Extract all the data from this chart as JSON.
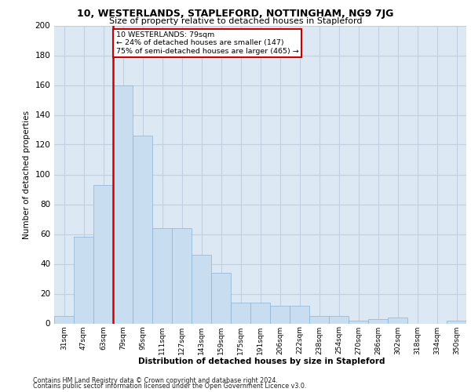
{
  "title": "10, WESTERLANDS, STAPLEFORD, NOTTINGHAM, NG9 7JG",
  "subtitle": "Size of property relative to detached houses in Stapleford",
  "xlabel": "Distribution of detached houses by size in Stapleford",
  "ylabel": "Number of detached properties",
  "categories": [
    "31sqm",
    "47sqm",
    "63sqm",
    "79sqm",
    "95sqm",
    "111sqm",
    "127sqm",
    "143sqm",
    "159sqm",
    "175sqm",
    "191sqm",
    "206sqm",
    "222sqm",
    "238sqm",
    "254sqm",
    "270sqm",
    "286sqm",
    "302sqm",
    "318sqm",
    "334sqm",
    "350sqm"
  ],
  "values": [
    5,
    58,
    93,
    160,
    126,
    64,
    64,
    46,
    34,
    14,
    14,
    12,
    12,
    5,
    5,
    2,
    3,
    4,
    0,
    0,
    2
  ],
  "bar_color": "#c9ddf0",
  "bar_edge_color": "#8ab4d8",
  "vline_color": "#cc0000",
  "vline_index": 3,
  "annotation_text": "10 WESTERLANDS: 79sqm\n← 24% of detached houses are smaller (147)\n75% of semi-detached houses are larger (465) →",
  "annotation_box_color": "#ffffff",
  "annotation_box_edge": "#cc0000",
  "ylim": [
    0,
    200
  ],
  "yticks": [
    0,
    20,
    40,
    60,
    80,
    100,
    120,
    140,
    160,
    180,
    200
  ],
  "grid_color": "#c0d0e0",
  "background_color": "#dce8f4",
  "footer_line1": "Contains HM Land Registry data © Crown copyright and database right 2024.",
  "footer_line2": "Contains public sector information licensed under the Open Government Licence v3.0."
}
